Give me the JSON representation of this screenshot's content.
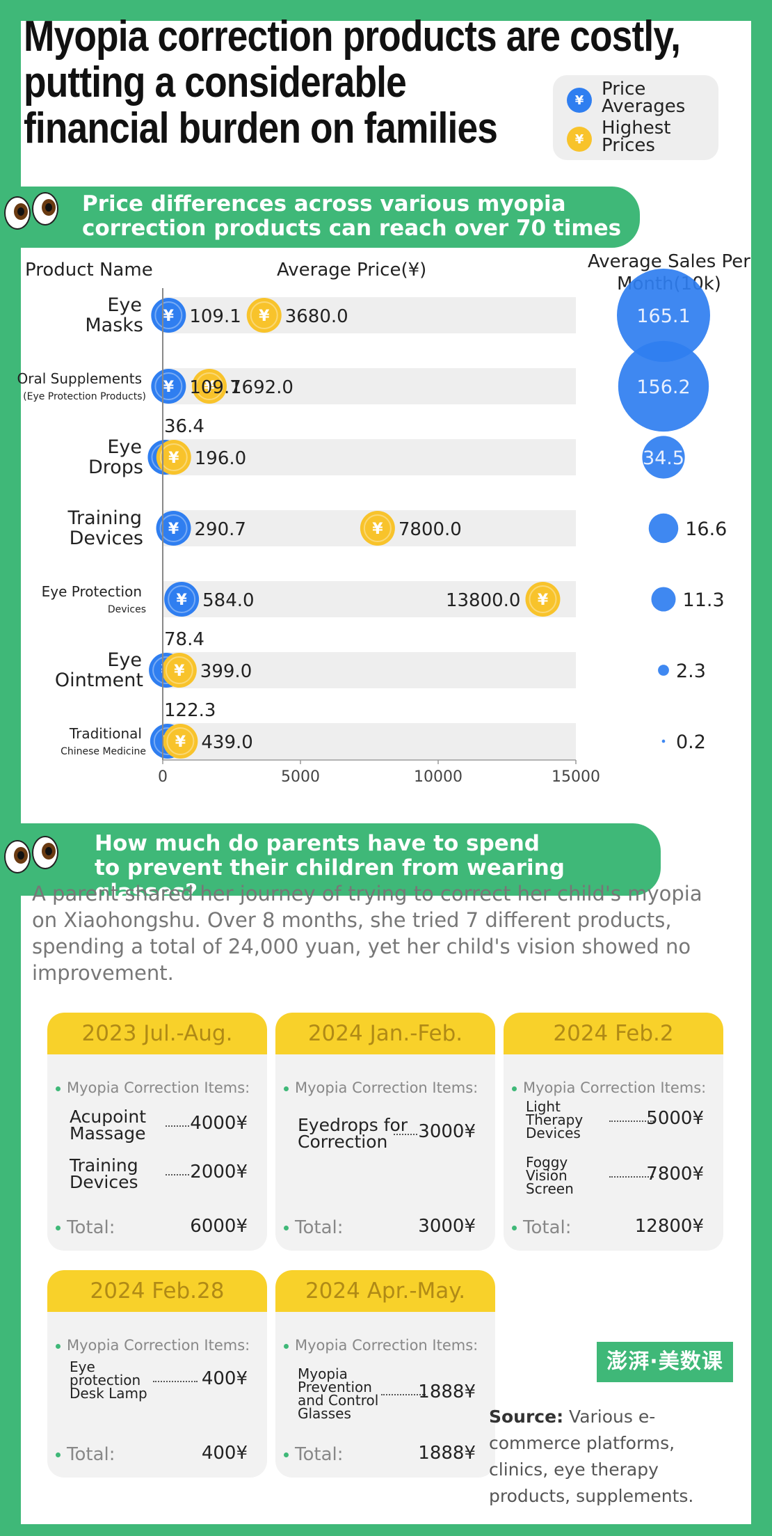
{
  "title": [
    "Myopia correction products are costly,",
    "putting a considerable",
    "financial burden on families"
  ],
  "legend": {
    "avg": "Price Averages",
    "high": "Highest Prices",
    "avg_color": "#2f7ef0",
    "high_color": "#f8c32b",
    "icon_glyph": "¥"
  },
  "banner1": [
    "Price differences across various myopia",
    "correction products can reach over 70 times"
  ],
  "banner2": [
    "How much do parents have to spend",
    "to prevent their children from wearing glasses?"
  ],
  "chart_data": {
    "type": "bar",
    "columns": {
      "name": "Product Name",
      "price": "Average Price(¥)",
      "sales": "Average Sales Per Month(10k)"
    },
    "xlim": [
      0,
      15000
    ],
    "xticks": [
      "0",
      "5000",
      "10000",
      "15000"
    ],
    "products": [
      {
        "name": [
          "Eye",
          "Masks"
        ],
        "avg": 109.1,
        "avg_label": "109.1",
        "high": 3680.0,
        "high_label": "3680.0",
        "sales": 165.1,
        "sales_label": "165.1"
      },
      {
        "name": [
          "Oral Supplements",
          "(Eye Protection Products)"
        ],
        "avg": 109.7,
        "avg_label": "109.7",
        "high": 1692.0,
        "high_label": "1692.0",
        "sales": 156.2,
        "sales_label": "156.2"
      },
      {
        "name": [
          "Eye",
          "Drops"
        ],
        "avg": 36.4,
        "avg_label": "36.4",
        "high": 196.0,
        "high_label": "196.0",
        "sales": 34.5,
        "sales_label": "34.5"
      },
      {
        "name": [
          "Training",
          "Devices"
        ],
        "avg": 290.7,
        "avg_label": "290.7",
        "high": 7800.0,
        "high_label": "7800.0",
        "sales": 16.6,
        "sales_label": "16.6"
      },
      {
        "name": [
          "Eye Protection",
          "Devices"
        ],
        "avg": 584.0,
        "avg_label": "584.0",
        "high": 13800.0,
        "high_label": "13800.0",
        "sales": 11.3,
        "sales_label": "11.3"
      },
      {
        "name": [
          "Eye",
          "Ointment"
        ],
        "avg": 78.4,
        "avg_label": "78.4",
        "high": 399.0,
        "high_label": "399.0",
        "sales": 2.3,
        "sales_label": "2.3"
      },
      {
        "name": [
          "Traditional",
          "Chinese Medicine"
        ],
        "avg": 122.3,
        "avg_label": "122.3",
        "high": 439.0,
        "high_label": "439.0",
        "sales": 0.2,
        "sales_label": "0.2"
      }
    ]
  },
  "story": "A parent shared her journey of trying to correct her child's myopia on Xiaohongshu. Over 8 months, she tried 7 different products, spending a total of 24,000 yuan, yet her child's vision showed no improvement.",
  "items_label": "Myopia Correction Items:",
  "total_label": "Total:",
  "periods": [
    {
      "header": "2023 Jul.-Aug.",
      "items": [
        {
          "name": [
            "Acupoint",
            "Massage"
          ],
          "value": "4000¥"
        },
        {
          "name": [
            "Training",
            "Devices"
          ],
          "value": "2000¥"
        }
      ],
      "total": "6000¥"
    },
    {
      "header": "2024 Jan.-Feb.",
      "items": [
        {
          "name": [
            "Eyedrops for",
            "Correction"
          ],
          "value": "3000¥"
        }
      ],
      "total": "3000¥"
    },
    {
      "header": "2024 Feb.2",
      "items": [
        {
          "name": [
            "Light",
            "Therapy",
            "Devices"
          ],
          "value": "5000¥"
        },
        {
          "name": [
            "Foggy",
            "Vision",
            "Screen"
          ],
          "value": "7800¥"
        }
      ],
      "total": "12800¥"
    },
    {
      "header": "2024 Feb.28",
      "items": [
        {
          "name": [
            "Eye",
            "protection",
            "Desk Lamp"
          ],
          "value": "400¥"
        }
      ],
      "total": "400¥"
    },
    {
      "header": "2024 Apr.-May.",
      "items": [
        {
          "name": [
            "Myopia",
            "Prevention",
            "and Control",
            "Glasses"
          ],
          "value": "1888¥"
        }
      ],
      "total": "1888¥"
    }
  ],
  "logo": "澎湃·美数课",
  "source": {
    "label": "Source:",
    "text": " Various e-commerce platforms, clinics, eye therapy products, supplements."
  }
}
